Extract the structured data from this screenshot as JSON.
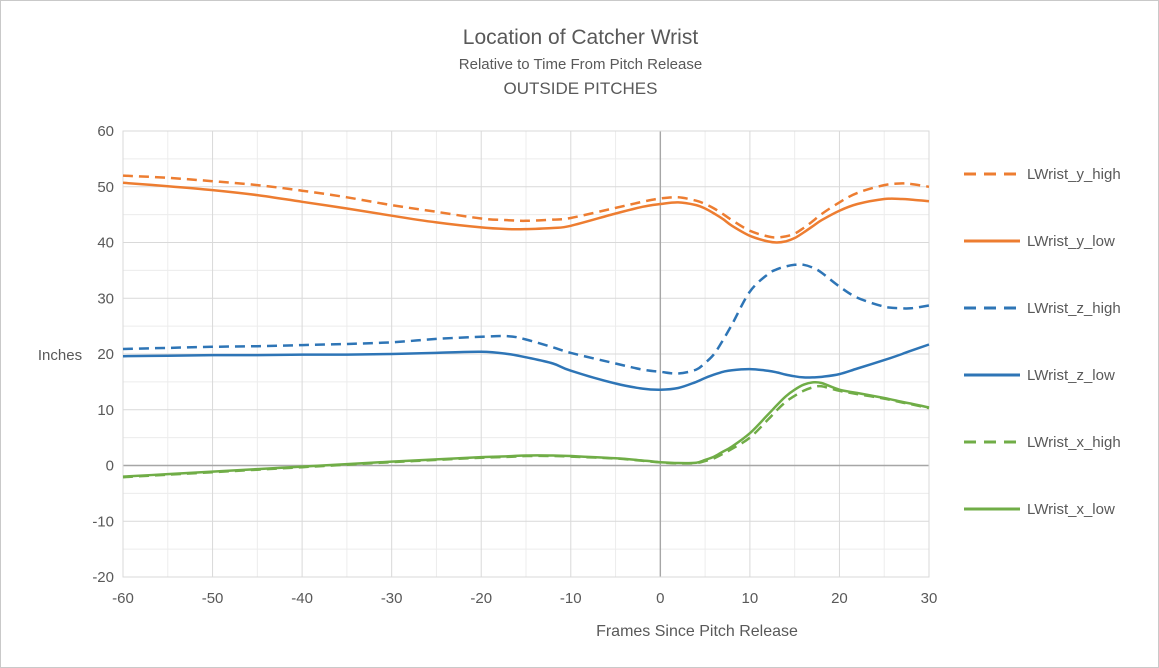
{
  "title": {
    "line1": "Location of Catcher Wrist",
    "line2": "Relative to Time From Pitch Release",
    "line3": "OUTSIDE PITCHES"
  },
  "axes": {
    "x_title": "Frames Since Pitch Release",
    "y_title": "Inches"
  },
  "colors": {
    "orange": "#ED7D31",
    "blue": "#2E75B6",
    "green": "#70AD47",
    "text": "#595959",
    "grid_minor": "#ececec",
    "grid_major": "#d9d9d9",
    "axis_zero": "#a6a6a6",
    "plot_border": "#d9d9d9"
  },
  "chart_data": {
    "type": "line",
    "title": "Location of Catcher Wrist",
    "subtitle": "Relative to Time From Pitch Release",
    "subtitle2": "OUTSIDE PITCHES",
    "xlabel": "Frames Since Pitch Release",
    "ylabel": "Inches",
    "xlim": [
      -60,
      30
    ],
    "ylim": [
      -20,
      60
    ],
    "xticks": [
      -60,
      -50,
      -40,
      -30,
      -20,
      -10,
      0,
      10,
      20,
      30
    ],
    "yticks": [
      -20,
      -10,
      0,
      10,
      20,
      30,
      40,
      50,
      60
    ],
    "grid": {
      "minor_step": 5,
      "major_step": 10,
      "minor_on": true,
      "major_on": true
    },
    "legend_position": "right",
    "x": [
      -60,
      -55,
      -50,
      -45,
      -40,
      -35,
      -30,
      -25,
      -20,
      -17,
      -15,
      -12,
      -10,
      -5,
      -2,
      0,
      2,
      4,
      5,
      6,
      7,
      8,
      10,
      12,
      13,
      14,
      15,
      16,
      17,
      18,
      20,
      22,
      25,
      27,
      28,
      30
    ],
    "series": [
      {
        "name": "LWrist_y_high",
        "color": "#ED7D31",
        "style": "dashed",
        "values": [
          52.0,
          51.6,
          51.0,
          50.3,
          49.3,
          48.1,
          46.7,
          45.5,
          44.3,
          44.0,
          43.9,
          44.1,
          44.4,
          46.2,
          47.3,
          47.9,
          48.1,
          47.5,
          46.9,
          46.1,
          45.1,
          44.0,
          42.1,
          41.1,
          40.9,
          41.1,
          41.6,
          42.6,
          43.8,
          45.1,
          47.2,
          48.9,
          50.3,
          50.6,
          50.5,
          50.0
        ]
      },
      {
        "name": "LWrist_y_low",
        "color": "#ED7D31",
        "style": "solid",
        "values": [
          50.7,
          50.1,
          49.4,
          48.5,
          47.3,
          46.1,
          44.8,
          43.6,
          42.7,
          42.4,
          42.4,
          42.6,
          43.0,
          45.2,
          46.4,
          46.9,
          47.2,
          46.7,
          46.1,
          45.2,
          44.2,
          43.0,
          41.2,
          40.2,
          40.0,
          40.2,
          40.8,
          41.8,
          42.9,
          44.0,
          45.7,
          46.9,
          47.8,
          47.8,
          47.7,
          47.4
        ]
      },
      {
        "name": "LWrist_z_high",
        "color": "#2E75B6",
        "style": "dashed",
        "values": [
          20.9,
          21.1,
          21.3,
          21.4,
          21.6,
          21.8,
          22.1,
          22.7,
          23.1,
          23.2,
          22.6,
          21.2,
          20.2,
          18.3,
          17.2,
          16.8,
          16.5,
          17.2,
          18.4,
          20.0,
          22.5,
          25.3,
          31.2,
          34.3,
          35.2,
          35.7,
          36.0,
          36.0,
          35.5,
          34.6,
          32.1,
          30.1,
          28.5,
          28.2,
          28.2,
          28.7
        ]
      },
      {
        "name": "LWrist_z_low",
        "color": "#2E75B6",
        "style": "solid",
        "values": [
          19.6,
          19.7,
          19.8,
          19.8,
          19.9,
          19.9,
          20.0,
          20.2,
          20.4,
          20.0,
          19.4,
          18.3,
          17.0,
          14.7,
          13.8,
          13.6,
          13.9,
          15.0,
          15.7,
          16.3,
          16.8,
          17.1,
          17.3,
          17.0,
          16.7,
          16.3,
          16.0,
          15.8,
          15.8,
          15.9,
          16.4,
          17.4,
          18.9,
          20.0,
          20.6,
          21.7
        ]
      },
      {
        "name": "LWrist_x_high",
        "color": "#70AD47",
        "style": "dashed",
        "values": [
          -2.1,
          -1.65,
          -1.2,
          -0.75,
          -0.3,
          0.15,
          0.6,
          1.0,
          1.4,
          1.55,
          1.7,
          1.7,
          1.6,
          1.25,
          0.85,
          0.55,
          0.4,
          0.45,
          0.8,
          1.3,
          2.1,
          3.0,
          5.0,
          8.2,
          9.9,
          11.4,
          12.5,
          13.4,
          14.0,
          14.2,
          13.4,
          12.8,
          12.0,
          11.3,
          11.0,
          10.3
        ]
      },
      {
        "name": "LWrist_x_low",
        "color": "#70AD47",
        "style": "solid",
        "values": [
          -2.0,
          -1.55,
          -1.1,
          -0.65,
          -0.2,
          0.25,
          0.7,
          1.1,
          1.5,
          1.65,
          1.8,
          1.8,
          1.7,
          1.3,
          0.9,
          0.6,
          0.45,
          0.5,
          1.0,
          1.6,
          2.5,
          3.4,
          5.8,
          9.1,
          10.8,
          12.4,
          13.6,
          14.5,
          14.9,
          14.8,
          13.6,
          13.0,
          12.1,
          11.4,
          11.1,
          10.4
        ]
      }
    ]
  }
}
